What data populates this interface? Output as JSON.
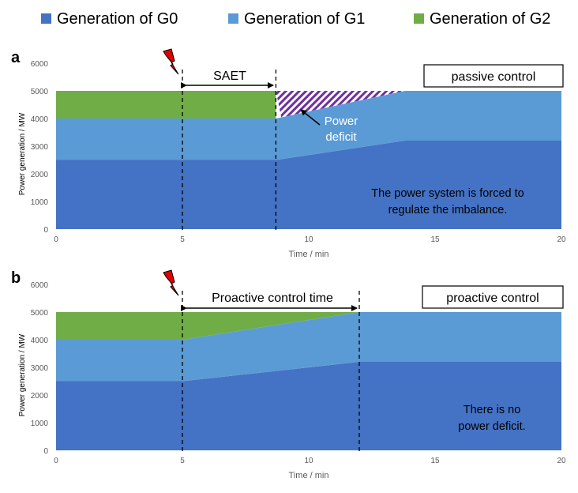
{
  "legend": [
    {
      "label": "Generation of G0",
      "color": "#4472c4"
    },
    {
      "label": "Generation of G1",
      "color": "#5b9bd5"
    },
    {
      "label": "Generation of G2",
      "color": "#70ad47"
    }
  ],
  "deficit_color": "#7030a0",
  "chart_data": [
    {
      "type": "area",
      "panel_label": "a",
      "xlabel": "Time / min",
      "ylabel": "Power generation / MW",
      "xlim": [
        0,
        20
      ],
      "ylim": [
        0,
        6000
      ],
      "x_ticks": [
        0,
        5,
        10,
        15,
        20
      ],
      "y_ticks": [
        0,
        1000,
        2000,
        3000,
        4000,
        5000,
        6000
      ],
      "grid": false,
      "stacked": true,
      "series": [
        {
          "name": "Generation of G0",
          "x": [
            0,
            5,
            8.7,
            13.8,
            20
          ],
          "values": [
            2500,
            2500,
            2500,
            3200,
            3200
          ]
        },
        {
          "name": "Generation of G1",
          "x": [
            0,
            5,
            8.7,
            13.8,
            20
          ],
          "values": [
            1500,
            1500,
            1500,
            1800,
            1800
          ]
        },
        {
          "name": "Generation of G2",
          "x": [
            0,
            5,
            8.7
          ],
          "values": [
            1000,
            1000,
            1000
          ]
        }
      ],
      "deficit_region": {
        "x": [
          8.7,
          13.8
        ],
        "upper": 5000
      },
      "event_time": 5,
      "vlines": [
        5,
        8.7
      ],
      "interval_label": "SAET",
      "box_label": "passive control",
      "annotations": [
        "Power",
        "deficit",
        "The power system is forced to",
        "regulate the imbalance."
      ]
    },
    {
      "type": "area",
      "panel_label": "b",
      "xlabel": "Time / min",
      "ylabel": "Power generation / MW",
      "xlim": [
        0,
        20
      ],
      "ylim": [
        0,
        6000
      ],
      "x_ticks": [
        0,
        5,
        10,
        15,
        20
      ],
      "y_ticks": [
        0,
        1000,
        2000,
        3000,
        4000,
        5000,
        6000
      ],
      "grid": false,
      "stacked": true,
      "series": [
        {
          "name": "Generation of G0",
          "x": [
            0,
            5,
            12,
            20
          ],
          "values": [
            2500,
            2500,
            3200,
            3200
          ]
        },
        {
          "name": "Generation of G1",
          "x": [
            0,
            5,
            12,
            20
          ],
          "values": [
            1500,
            1500,
            1800,
            1800
          ]
        },
        {
          "name": "Generation of G2",
          "x": [
            0,
            5,
            12
          ],
          "values": [
            1000,
            1000,
            0
          ]
        }
      ],
      "event_time": 5,
      "vlines": [
        5,
        12
      ],
      "interval_label": "Proactive control time",
      "box_label": "proactive control",
      "annotations": [
        "There is no",
        "power deficit."
      ]
    }
  ]
}
